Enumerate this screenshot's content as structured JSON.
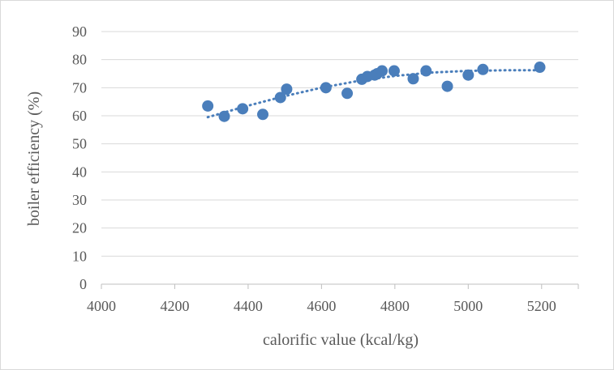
{
  "chart_data": {
    "type": "scatter",
    "title": "",
    "xlabel": "calorific value (kcal/kg)",
    "ylabel": "boiler efficiency (%)",
    "xlim": [
      4000,
      5300
    ],
    "ylim": [
      0,
      90
    ],
    "x_ticks": [
      4000,
      4200,
      4400,
      4600,
      4800,
      5000,
      5200
    ],
    "y_ticks": [
      0,
      10,
      20,
      30,
      40,
      50,
      60,
      70,
      80,
      90
    ],
    "grid": "horizontal",
    "legend": "none",
    "series": [
      {
        "color": "#4a7ebb",
        "points": [
          {
            "x": 4290,
            "y": 63.5
          },
          {
            "x": 4335,
            "y": 59.8
          },
          {
            "x": 4385,
            "y": 62.5
          },
          {
            "x": 4440,
            "y": 60.5
          },
          {
            "x": 4488,
            "y": 66.5
          },
          {
            "x": 4505,
            "y": 69.5
          },
          {
            "x": 4612,
            "y": 70.0
          },
          {
            "x": 4670,
            "y": 68.0
          },
          {
            "x": 4710,
            "y": 73.0
          },
          {
            "x": 4725,
            "y": 74.0
          },
          {
            "x": 4745,
            "y": 74.5
          },
          {
            "x": 4752,
            "y": 75.0
          },
          {
            "x": 4765,
            "y": 76.0
          },
          {
            "x": 4798,
            "y": 76.0
          },
          {
            "x": 4850,
            "y": 73.2
          },
          {
            "x": 4885,
            "y": 76.0
          },
          {
            "x": 4943,
            "y": 70.5
          },
          {
            "x": 5000,
            "y": 74.5
          },
          {
            "x": 5040,
            "y": 76.5
          },
          {
            "x": 5195,
            "y": 77.3
          }
        ]
      }
    ],
    "trendline": {
      "type": "polynomial",
      "style": "dotted",
      "color": "#4a7ebb",
      "points": [
        {
          "x": 4290,
          "y": 59.5
        },
        {
          "x": 4400,
          "y": 63.6
        },
        {
          "x": 4500,
          "y": 67.0
        },
        {
          "x": 4600,
          "y": 70.0
        },
        {
          "x": 4700,
          "y": 72.4
        },
        {
          "x": 4800,
          "y": 74.2
        },
        {
          "x": 4900,
          "y": 75.4
        },
        {
          "x": 5000,
          "y": 76.0
        },
        {
          "x": 5100,
          "y": 76.2
        },
        {
          "x": 5195,
          "y": 76.2
        }
      ]
    }
  }
}
